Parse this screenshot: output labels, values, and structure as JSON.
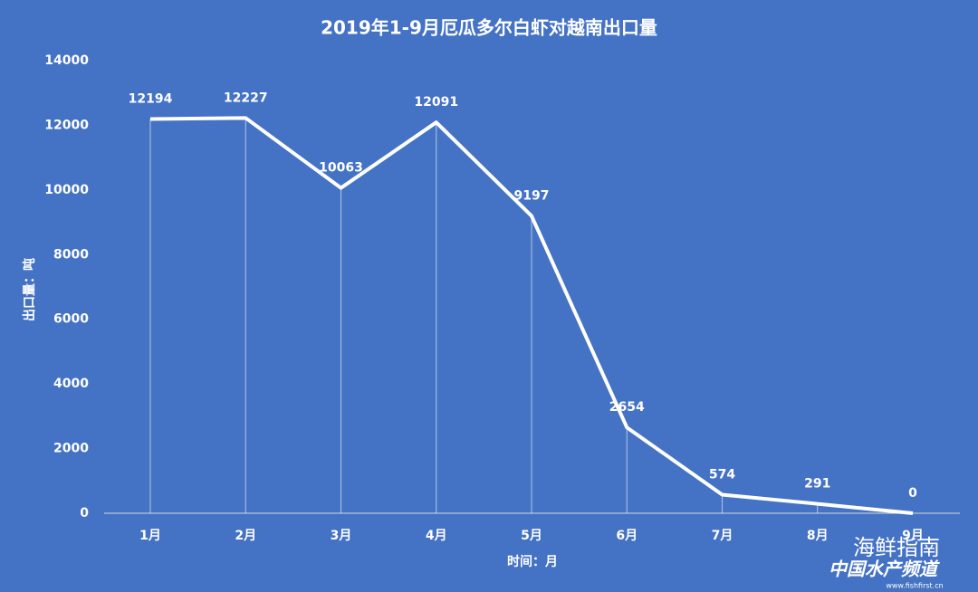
{
  "chart_data": {
    "type": "line",
    "title": "2019年1-9月厄瓜多尔白虾对越南出口量",
    "x_label": "时间：月",
    "y_label": "出口量：吨",
    "categories": [
      "1月",
      "2月",
      "3月",
      "4月",
      "5月",
      "6月",
      "7月",
      "8月",
      "9月"
    ],
    "values": [
      12194,
      12227,
      10063,
      12091,
      9197,
      2654,
      574,
      291,
      0
    ],
    "color": "#ffffff",
    "background": "#4472c4",
    "drop_lines": true,
    "ylim": [
      0,
      14000
    ],
    "yticks": [
      0,
      2000,
      4000,
      6000,
      8000,
      10000,
      12000,
      14000
    ],
    "watermark": [
      "海鲜指南",
      "中国水产频道",
      "www.fishfirst.cn"
    ]
  }
}
